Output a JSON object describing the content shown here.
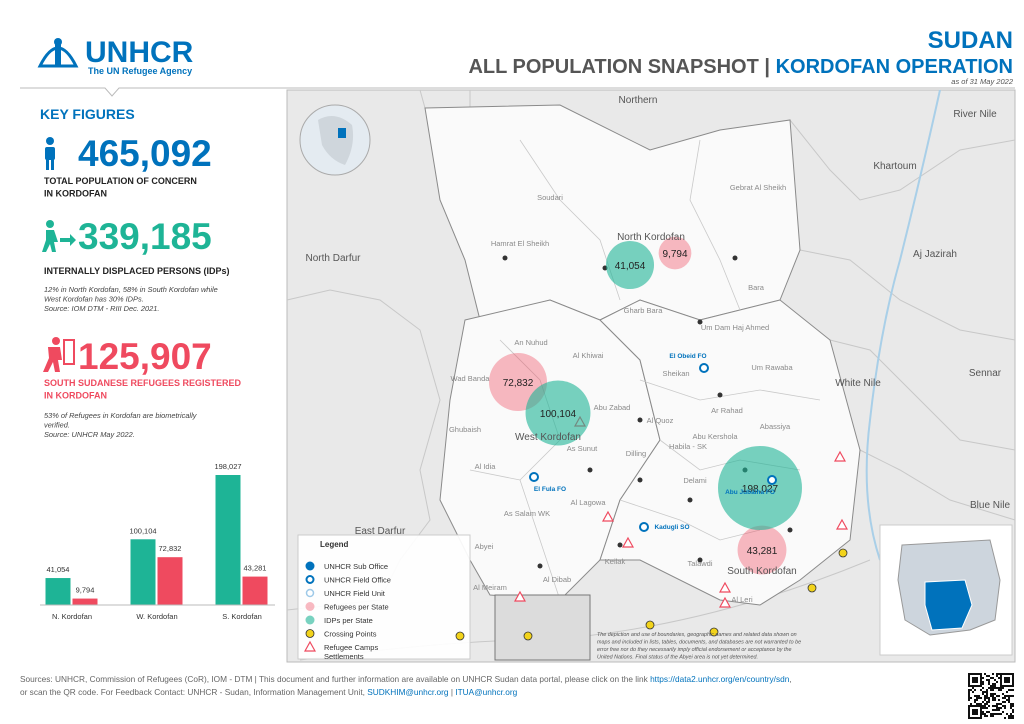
{
  "header": {
    "logo": "UNHCR",
    "logo_tagline": "The UN Refugee Agency",
    "country": "SUDAN",
    "title": "ALL POPULATION SNAPSHOT",
    "separator": "|",
    "operation": "KORDOFAN OPERATION",
    "date": "as of 31 May 2022"
  },
  "key_figures": {
    "heading": "KEY FIGURES",
    "total": {
      "value": "465,092",
      "label": [
        "TOTAL POPULATION OF CONCERN",
        "IN KORDOFAN"
      ]
    },
    "idps": {
      "value": "339,185",
      "label": [
        "INTERNALLY DISPLACED PERSONS (IDPs)"
      ],
      "note": [
        "12% in North Kordofan, 58% in South Kordofan while",
        "West Kordofan has 30% IDPs.",
        "Source: IOM DTM - RIII Dec. 2021."
      ]
    },
    "refugees": {
      "value": "125,907",
      "label": [
        "SOUTH SUDANESE REFUGEES REGISTERED",
        "IN KORDOFAN"
      ],
      "note": [
        "53% of Refugees in Kordofan are biometrically",
        "verified.",
        "Source: UNHCR May 2022."
      ]
    }
  },
  "chart_data": {
    "type": "bar",
    "categories": [
      "N. Kordofan",
      "W. Kordofan",
      "S. Kordofan"
    ],
    "series": [
      {
        "name": "IDPs per State",
        "color": "#1eb496",
        "values": [
          41054,
          100104,
          198027
        ],
        "value_labels": [
          "41,054",
          "100,104",
          "198,027"
        ]
      },
      {
        "name": "Refugees per State",
        "color": "#ef4a5f",
        "values": [
          9794,
          72832,
          43281
        ],
        "value_labels": [
          "9,794",
          "72,832",
          "43,281"
        ]
      }
    ]
  },
  "map": {
    "regions": [
      "Northern",
      "River Nile",
      "Khartoum",
      "North Darfur",
      "Aj Jazirah",
      "White Nile",
      "Sennar",
      "Blue Nile",
      "East Darfur",
      "North Kordofan",
      "West Kordofan",
      "South Kordofan"
    ],
    "localities": [
      "Soudari",
      "Gebrat Al Sheikh",
      "Hamrat El Sheikh",
      "Bara",
      "Gharb Bara",
      "Um Dam Haj Ahmed",
      "Sheikan",
      "Um Rawaba",
      "Ar Rahad",
      "An Nuhud",
      "Al Khiwai",
      "Wad Banda",
      "Abu Zabad",
      "Ghubaish",
      "As Sunut",
      "Al Idia",
      "Dilling",
      "Habila - SK",
      "Abu Kershola",
      "Abassiya",
      "Al Quoz",
      "Delami",
      "Al Lagowa",
      "As Salam WK",
      "Keilak",
      "Abyei",
      "Al Meiram",
      "Al Dibab",
      "Talawdi",
      "Al Leri"
    ],
    "offices": [
      "El Obeid FO",
      "El Fula FO",
      "Kadugli SO",
      "Abu Jubaiha FO"
    ],
    "legend": {
      "title": "Legend",
      "items": [
        "UNHCR Sub Office",
        "UNHCR Field Office",
        "UNHCR Field Unit",
        "Crossing Points",
        [
          "Refugee Camps",
          "Settlements"
        ]
      ]
    },
    "disclaimer": [
      "The depiction and use of boundaries, geographic names and related data shown on",
      "maps and included in lists, tables, documents, and databases are not warranted to be",
      "error free nor do they necessarily imply official endorsement or acceptance by the",
      "United Nations. Final status of the Abyei area is not yet determined."
    ]
  },
  "footer": {
    "line1": "Sources: UNHCR, Commission of Refugees (CoR), IOM - DTM | This document and further information are available on UNHCR Sudan data portal, please click on the link ",
    "link": "https://data2.unhcr.org/en/country/sdn",
    "line1_end": ",",
    "line2": "or scan the QR code. For Feedback Contact: UNHCR - Sudan, Information Management Unit, ",
    "email1": "SUDKHIM@unhcr.org",
    "separator": " | ",
    "email2": "ITUA@unhcr.org"
  }
}
